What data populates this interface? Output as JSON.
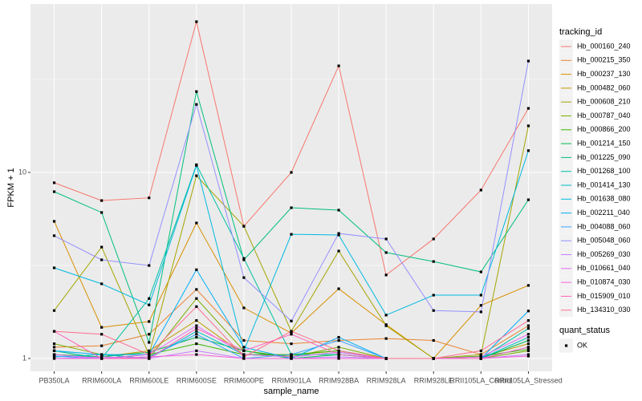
{
  "chart_data": {
    "type": "line",
    "x_label": "sample_name",
    "y_label": "FPKM + 1",
    "categories": [
      "PB350LA",
      "RRIM600LA",
      "RRIM600LE",
      "RRIM600SE",
      "RRIM600PE",
      "RRIM901LA",
      "RRIM928BA",
      "RRIM928LA",
      "RRIM928LE",
      "RRII105LA_Control",
      "RRII105LA_Stressed"
    ],
    "ylim": [
      0.853,
      80.4
    ],
    "yticks": [
      1,
      10
    ],
    "log_y": true,
    "grid": true,
    "legend": "right",
    "legend_title": "tracking_id",
    "point_legend": {
      "title": "quant_status",
      "labels": [
        "OK"
      ],
      "color": "#000000"
    },
    "series": [
      {
        "name": "Hb_000160_240",
        "color": "#F8766D",
        "values": [
          8.8,
          7.06,
          7.3,
          64.6,
          5.14,
          10,
          37.4,
          2.81,
          4.39,
          8.04,
          22.1
        ]
      },
      {
        "name": "Hb_000215_350",
        "color": "#EA8331",
        "values": [
          1.15,
          1.17,
          1.35,
          2.35,
          1.25,
          1.2,
          1.25,
          1.28,
          1.25,
          1.05,
          1.5
        ]
      },
      {
        "name": "Hb_000237_130",
        "color": "#D89000",
        "values": [
          5.46,
          1.47,
          1.58,
          5.35,
          1.87,
          1.37,
          2.37,
          1.52,
          1.0,
          1.93,
          2.47
        ]
      },
      {
        "name": "Hb_000482_060",
        "color": "#C09B00",
        "values": [
          1.05,
          1.02,
          1.1,
          1.6,
          1.05,
          1.04,
          1.1,
          1.0,
          1.0,
          1.02,
          1.2
        ]
      },
      {
        "name": "Hb_000608_210",
        "color": "#A3A500",
        "values": [
          1.81,
          3.97,
          1.05,
          9.6,
          5.14,
          1.4,
          3.78,
          1.5,
          1.0,
          1.05,
          17.8
        ]
      },
      {
        "name": "Hb_000787_040",
        "color": "#7CAE00",
        "values": [
          1.2,
          1.05,
          1.0,
          2.1,
          1.1,
          1.02,
          1.15,
          1.0,
          1.0,
          1.0,
          1.1
        ]
      },
      {
        "name": "Hb_000866_200",
        "color": "#39B600",
        "values": [
          1.1,
          1.0,
          1.05,
          1.2,
          1.05,
          1.05,
          1.1,
          1.0,
          1.0,
          1.03,
          1.12
        ]
      },
      {
        "name": "Hb_001214_150",
        "color": "#00BB4E",
        "values": [
          1.05,
          1.02,
          1.08,
          1.3,
          1.1,
          1.0,
          1.05,
          1.0,
          1.0,
          1.0,
          1.25
        ]
      },
      {
        "name": "Hb_001225_090",
        "color": "#00BF7D",
        "values": [
          7.88,
          6.09,
          1.22,
          27.2,
          3.39,
          6.46,
          6.27,
          3.71,
          3.32,
          2.92,
          7.13
        ]
      },
      {
        "name": "Hb_001268_100",
        "color": "#00C1A3",
        "values": [
          1.1,
          1.0,
          2.1,
          11.0,
          3.45,
          1.05,
          1.05,
          1.0,
          1.0,
          1.0,
          1.45
        ]
      },
      {
        "name": "Hb_001414_130",
        "color": "#00BFC4",
        "values": [
          1.02,
          1.05,
          1.0,
          1.4,
          1.05,
          1.02,
          1.08,
          1.0,
          1.0,
          1.0,
          1.3
        ]
      },
      {
        "name": "Hb_001638_080",
        "color": "#00BAE0",
        "values": [
          3.07,
          2.52,
          1.94,
          10.9,
          1.1,
          4.65,
          4.61,
          1.71,
          2.19,
          2.19,
          13.1
        ]
      },
      {
        "name": "Hb_002211_040",
        "color": "#00B0F6",
        "values": [
          1.1,
          1.05,
          1.05,
          3.0,
          1.15,
          1.0,
          1.3,
          1.0,
          1.0,
          1.0,
          1.8
        ]
      },
      {
        "name": "Hb_004088_060",
        "color": "#35A2FF",
        "values": [
          1.03,
          1.0,
          1.02,
          1.35,
          1.0,
          1.05,
          1.25,
          1.0,
          1.0,
          1.0,
          1.15
        ]
      },
      {
        "name": "Hb_005048_060",
        "color": "#9590FF",
        "values": [
          4.57,
          3.39,
          3.16,
          23.2,
          2.72,
          1.59,
          4.7,
          4.39,
          1.81,
          1.78,
          39.7
        ]
      },
      {
        "name": "Hb_005269_030",
        "color": "#C77CFF",
        "values": [
          1.0,
          1.02,
          1.0,
          1.1,
          1.0,
          1.0,
          1.02,
          1.0,
          1.0,
          1.0,
          1.05
        ]
      },
      {
        "name": "Hb_010661_040",
        "color": "#E76BF3",
        "values": [
          1.05,
          1.0,
          1.05,
          1.5,
          1.05,
          1.02,
          1.08,
          1.0,
          1.0,
          1.02,
          1.35
        ]
      },
      {
        "name": "Hb_010874_030",
        "color": "#FA62DB",
        "values": [
          1.0,
          1.0,
          1.02,
          1.05,
          1.0,
          1.0,
          1.0,
          1.0,
          1.0,
          1.0,
          1.03
        ]
      },
      {
        "name": "Hb_015909_010",
        "color": "#FF62BC",
        "values": [
          1.4,
          1.0,
          1.0,
          1.45,
          1.1,
          1.35,
          1.05,
          1.0,
          1.0,
          1.0,
          1.15
        ]
      },
      {
        "name": "Hb_134310_030",
        "color": "#FF6C91",
        "values": [
          1.4,
          1.35,
          1.05,
          1.9,
          1.02,
          1.4,
          1.1,
          1.0,
          1.0,
          1.1,
          1.6
        ]
      }
    ]
  }
}
